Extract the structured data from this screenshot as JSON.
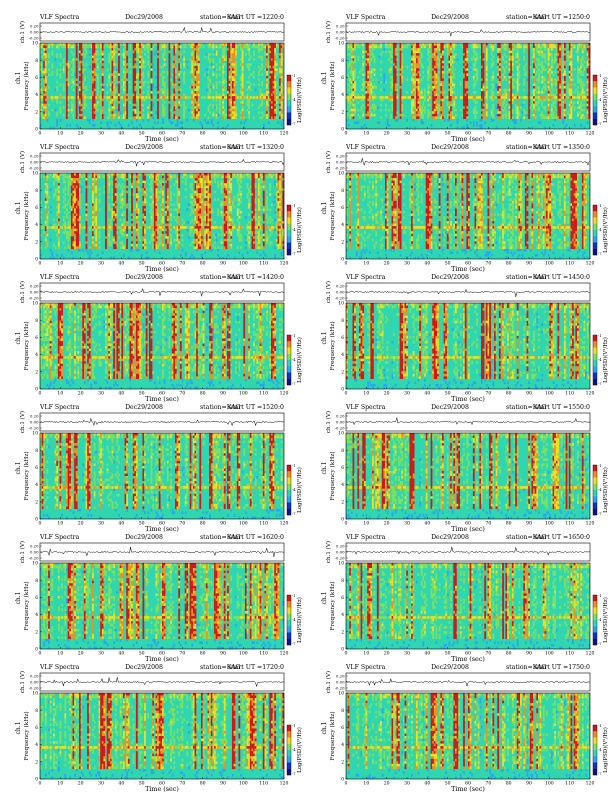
{
  "chart_data": {
    "type": "heatmap",
    "common": {
      "title_left": "VLF Spectra",
      "date": "Dec29/2008",
      "station": "station=KAG",
      "start_prefix": "start  UT  =",
      "waveform_ylabel": "ch.1 (V)",
      "waveform_ticks": [
        "0.20",
        "0.00",
        "-0.20"
      ],
      "ylabel_top": "ch.1",
      "ylabel": "Frequency  (kHz)",
      "xlabel": "Time  (sec)",
      "xticks": [
        0,
        10,
        20,
        30,
        40,
        50,
        60,
        70,
        80,
        90,
        100,
        110,
        120
      ],
      "yticks": [
        0,
        2,
        4,
        6,
        8,
        10
      ],
      "xlim": [
        0,
        120
      ],
      "ylim": [
        0,
        10
      ],
      "colorbar_label": "Log(PSD)(V²/Hz)",
      "colorbar_ticks": [
        "-1",
        "-4",
        "-7"
      ]
    },
    "panels": [
      {
        "start_ut": "1220:0"
      },
      {
        "start_ut": "1250:0"
      },
      {
        "start_ut": "1320:0"
      },
      {
        "start_ut": "1350:0"
      },
      {
        "start_ut": "1420:0"
      },
      {
        "start_ut": "1450:0"
      },
      {
        "start_ut": "1520:0"
      },
      {
        "start_ut": "1550:0"
      },
      {
        "start_ut": "1620:0"
      },
      {
        "start_ut": "1650:0"
      },
      {
        "start_ut": "1720:0"
      },
      {
        "start_ut": "1750:0"
      }
    ]
  }
}
